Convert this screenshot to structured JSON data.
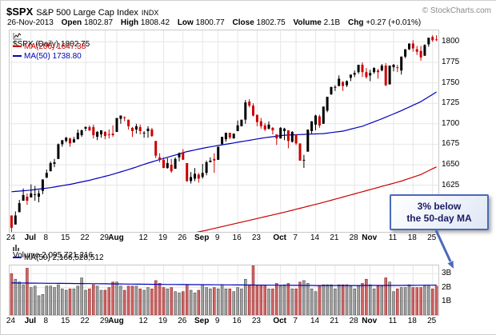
{
  "header": {
    "symbol": "$SPX",
    "name": "S&P 500 Large Cap Index",
    "exchange": "INDX",
    "copyright": "© StockCharts.com",
    "date": "26-Nov-2013",
    "quote": [
      {
        "label": "Open",
        "value": "1802.87"
      },
      {
        "label": "High",
        "value": "1808.42"
      },
      {
        "label": "Low",
        "value": "1800.77"
      },
      {
        "label": "Close",
        "value": "1802.75"
      },
      {
        "label": "Volume",
        "value": "2.1B"
      },
      {
        "label": "Chg",
        "value": "+0.27 (+0.01%)"
      }
    ]
  },
  "price_pane": {
    "legend_symbol": "$SPX (Daily) 1802.75",
    "legend_ma200": "MA(200) 1647.38",
    "legend_ma50": "MA(50) 1738.80"
  },
  "volume_pane": {
    "legend_volume": "Volume 2,095,721,216",
    "legend_ma50": "MA(50) 2,166,528,512"
  },
  "annotation": {
    "text_line1": "3% below",
    "text_line2": "the 50-day MA"
  },
  "colors": {
    "up": "#000000",
    "down": "#cc0000",
    "ma50": "#0000bb",
    "ma200": "#cc0000",
    "grid": "#e6e6e6",
    "volume_up": "#8a8a8a",
    "volume_down": "#c04040",
    "annotation_blue": "#4a6ab8",
    "copyright_gray": "#8a8a8a"
  },
  "chart_data": {
    "type": "candlestick",
    "title": "$SPX S&P 500 Large Cap Index (Daily) with MA(50), MA(200) and Volume",
    "price_axis": {
      "min": 1568,
      "max": 1814,
      "ticks": [
        1800,
        1775,
        1750,
        1725,
        1700,
        1675,
        1650,
        1625
      ]
    },
    "volume_axis": {
      "min": 0,
      "max": 3.6,
      "unit": "billions",
      "ticks": [
        {
          "v": 3,
          "label": "3B"
        },
        {
          "v": 2,
          "label": "2B"
        },
        {
          "v": 1,
          "label": "1B"
        }
      ]
    },
    "x_ticks": [
      {
        "label": "24",
        "index": 0,
        "month": false
      },
      {
        "label": "Jul",
        "index": 5,
        "month": true
      },
      {
        "label": "8",
        "index": 9,
        "month": false
      },
      {
        "label": "15",
        "index": 14,
        "month": false
      },
      {
        "label": "22",
        "index": 19,
        "month": false
      },
      {
        "label": "29",
        "index": 24,
        "month": false
      },
      {
        "label": "Aug",
        "index": 27,
        "month": true
      },
      {
        "label": "12",
        "index": 34,
        "month": false
      },
      {
        "label": "19",
        "index": 39,
        "month": false
      },
      {
        "label": "26",
        "index": 44,
        "month": false
      },
      {
        "label": "Sep",
        "index": 49,
        "month": true
      },
      {
        "label": "9",
        "index": 53,
        "month": false
      },
      {
        "label": "16",
        "index": 58,
        "month": false
      },
      {
        "label": "23",
        "index": 63,
        "month": false
      },
      {
        "label": "Oct",
        "index": 69,
        "month": true
      },
      {
        "label": "7",
        "index": 73,
        "month": false
      },
      {
        "label": "14",
        "index": 78,
        "month": false
      },
      {
        "label": "21",
        "index": 83,
        "month": false
      },
      {
        "label": "28",
        "index": 88,
        "month": false
      },
      {
        "label": "Nov",
        "index": 92,
        "month": true
      },
      {
        "label": "11",
        "index": 98,
        "month": false
      },
      {
        "label": "18",
        "index": 103,
        "month": false
      },
      {
        "label": "25",
        "index": 108,
        "month": false
      }
    ],
    "candles": [
      [
        "6/24",
        1588,
        1588,
        1560,
        1573,
        3.0
      ],
      [
        "6/25",
        1577,
        1593,
        1577,
        1588,
        2.6
      ],
      [
        "6/26",
        1592,
        1607,
        1592,
        1603,
        2.4
      ],
      [
        "6/27",
        1606,
        1621,
        1606,
        1613,
        2.2
      ],
      [
        "6/28",
        1611,
        1615,
        1601,
        1606,
        3.4
      ],
      [
        "7/1",
        1610,
        1626,
        1610,
        1615,
        2.0
      ],
      [
        "7/2",
        1614,
        1624,
        1606,
        1614,
        2.1
      ],
      [
        "7/3",
        1611,
        1619,
        1604,
        1615,
        1.4
      ],
      [
        "7/5",
        1618,
        1632,
        1614,
        1632,
        1.5
      ],
      [
        "7/8",
        1634,
        1644,
        1634,
        1640,
        2.1
      ],
      [
        "7/9",
        1642,
        1654,
        1642,
        1652,
        2.1
      ],
      [
        "7/10",
        1651,
        1657,
        1647,
        1653,
        2.0
      ],
      [
        "7/11",
        1657,
        1676,
        1657,
        1675,
        2.2
      ],
      [
        "7/12",
        1675,
        1680,
        1672,
        1680,
        1.9
      ],
      [
        "7/15",
        1679,
        1684,
        1677,
        1683,
        1.8
      ],
      [
        "7/16",
        1682,
        1683,
        1672,
        1676,
        1.9
      ],
      [
        "7/17",
        1677,
        1684,
        1677,
        1681,
        1.9
      ],
      [
        "7/18",
        1681,
        1693,
        1681,
        1689,
        2.1
      ],
      [
        "7/19",
        1686,
        1693,
        1684,
        1692,
        2.7
      ],
      [
        "7/22",
        1694,
        1697,
        1691,
        1696,
        1.8
      ],
      [
        "7/23",
        1696,
        1698,
        1691,
        1692,
        1.9
      ],
      [
        "7/24",
        1696,
        1699,
        1682,
        1686,
        2.2
      ],
      [
        "7/25",
        1684,
        1691,
        1680,
        1690,
        2.1
      ],
      [
        "7/26",
        1687,
        1692,
        1683,
        1692,
        1.8
      ],
      [
        "7/29",
        1690,
        1691,
        1681,
        1685,
        1.8
      ],
      [
        "7/30",
        1687,
        1693,
        1682,
        1686,
        2.0
      ],
      [
        "7/31",
        1688,
        1698,
        1684,
        1686,
        2.4
      ],
      [
        "8/1",
        1690,
        1707,
        1690,
        1707,
        2.4
      ],
      [
        "8/2",
        1706,
        1710,
        1700,
        1710,
        2.1
      ],
      [
        "8/5",
        1708,
        1709,
        1703,
        1707,
        1.8
      ],
      [
        "8/6",
        1705,
        1705,
        1693,
        1697,
        2.1
      ],
      [
        "8/7",
        1695,
        1696,
        1684,
        1691,
        2.1
      ],
      [
        "8/8",
        1693,
        1700,
        1688,
        1697,
        2.1
      ],
      [
        "8/9",
        1696,
        1699,
        1687,
        1691,
        1.9
      ],
      [
        "8/12",
        1688,
        1691,
        1683,
        1689,
        1.8
      ],
      [
        "8/13",
        1691,
        1697,
        1683,
        1694,
        2.0
      ],
      [
        "8/14",
        1693,
        1695,
        1684,
        1685,
        1.9
      ],
      [
        "8/15",
        1679,
        1679,
        1658,
        1661,
        2.5
      ],
      [
        "8/16",
        1659,
        1664,
        1653,
        1656,
        2.3
      ],
      [
        "8/19",
        1656,
        1659,
        1646,
        1646,
        2.0
      ],
      [
        "8/20",
        1646,
        1658,
        1645,
        1652,
        1.9
      ],
      [
        "8/21",
        1650,
        1657,
        1640,
        1642,
        2.0
      ],
      [
        "8/22",
        1645,
        1659,
        1645,
        1657,
        1.7
      ],
      [
        "8/23",
        1659,
        1665,
        1654,
        1664,
        1.6
      ],
      [
        "8/26",
        1665,
        1669,
        1656,
        1656,
        1.7
      ],
      [
        "8/27",
        1652,
        1652,
        1629,
        1630,
        2.2
      ],
      [
        "8/28",
        1630,
        1641,
        1627,
        1635,
        1.8
      ],
      [
        "8/29",
        1633,
        1646,
        1630,
        1639,
        1.6
      ],
      [
        "8/30",
        1638,
        1640,
        1628,
        1633,
        1.8
      ],
      [
        "9/3",
        1635,
        1651,
        1633,
        1640,
        2.2
      ],
      [
        "9/4",
        1640,
        1655,
        1637,
        1653,
        2.0
      ],
      [
        "9/5",
        1653,
        1659,
        1653,
        1655,
        1.9
      ],
      [
        "9/6",
        1657,
        1664,
        1640,
        1655,
        2.0
      ],
      [
        "9/9",
        1656,
        1672,
        1656,
        1672,
        1.9
      ],
      [
        "9/10",
        1675,
        1684,
        1675,
        1684,
        2.2
      ],
      [
        "9/11",
        1681,
        1689,
        1678,
        1689,
        1.9
      ],
      [
        "9/12",
        1689,
        1689,
        1681,
        1683,
        1.9
      ],
      [
        "9/13",
        1682,
        1688,
        1682,
        1688,
        1.7
      ],
      [
        "9/16",
        1691,
        1704,
        1691,
        1698,
        2.0
      ],
      [
        "9/17",
        1697,
        1705,
        1697,
        1705,
        1.9
      ],
      [
        "9/18",
        1705,
        1729,
        1700,
        1726,
        2.6
      ],
      [
        "9/19",
        1727,
        1730,
        1720,
        1722,
        2.2
      ],
      [
        "9/20",
        1722,
        1725,
        1709,
        1710,
        3.6
      ],
      [
        "9/23",
        1711,
        1711,
        1697,
        1702,
        2.1
      ],
      [
        "9/24",
        1703,
        1707,
        1694,
        1697,
        2.1
      ],
      [
        "9/25",
        1698,
        1701,
        1691,
        1693,
        2.1
      ],
      [
        "9/26",
        1694,
        1703,
        1693,
        1699,
        1.9
      ],
      [
        "9/27",
        1695,
        1696,
        1687,
        1692,
        1.9
      ],
      [
        "9/30",
        1687,
        1687,
        1674,
        1682,
        2.3
      ],
      [
        "10/1",
        1682,
        1696,
        1682,
        1695,
        2.1
      ],
      [
        "10/2",
        1691,
        1695,
        1680,
        1694,
        2.2
      ],
      [
        "10/3",
        1692,
        1692,
        1670,
        1679,
        2.3
      ],
      [
        "10/4",
        1678,
        1691,
        1677,
        1690,
        1.9
      ],
      [
        "10/7",
        1687,
        1687,
        1674,
        1676,
        1.9
      ],
      [
        "10/8",
        1676,
        1676,
        1655,
        1655,
        2.4
      ],
      [
        "10/9",
        1656,
        1662,
        1646,
        1656,
        2.5
      ],
      [
        "10/10",
        1666,
        1693,
        1666,
        1693,
        2.3
      ],
      [
        "10/11",
        1691,
        1703,
        1688,
        1703,
        1.9
      ],
      [
        "10/14",
        1699,
        1711,
        1692,
        1710,
        1.7
      ],
      [
        "10/15",
        1709,
        1711,
        1695,
        1698,
        2.1
      ],
      [
        "10/16",
        1700,
        1721,
        1700,
        1721,
        2.2
      ],
      [
        "10/17",
        1716,
        1733,
        1714,
        1733,
        2.2
      ],
      [
        "10/18",
        1736,
        1745,
        1735,
        1745,
        2.2
      ],
      [
        "10/21",
        1745,
        1747,
        1740,
        1745,
        1.9
      ],
      [
        "10/22",
        1746,
        1759,
        1746,
        1755,
        2.2
      ],
      [
        "10/23",
        1751,
        1752,
        1740,
        1746,
        2.2
      ],
      [
        "10/24",
        1747,
        1753,
        1745,
        1752,
        2.2
      ],
      [
        "10/25",
        1756,
        1760,
        1752,
        1760,
        2.1
      ],
      [
        "10/28",
        1760,
        1765,
        1757,
        1762,
        1.9
      ],
      [
        "10/29",
        1763,
        1772,
        1761,
        1772,
        2.1
      ],
      [
        "10/30",
        1772,
        1775,
        1757,
        1763,
        2.3
      ],
      [
        "10/31",
        1763,
        1768,
        1755,
        1757,
        2.6
      ],
      [
        "11/1",
        1759,
        1766,
        1752,
        1762,
        2.2
      ],
      [
        "11/4",
        1763,
        1769,
        1761,
        1768,
        1.9
      ],
      [
        "11/5",
        1765,
        1767,
        1755,
        1763,
        2.1
      ],
      [
        "11/6",
        1765,
        1773,
        1764,
        1771,
        2.1
      ],
      [
        "11/7",
        1771,
        1774,
        1746,
        1747,
        2.7
      ],
      [
        "11/8",
        1748,
        1771,
        1748,
        1771,
        2.4
      ],
      [
        "11/11",
        1769,
        1773,
        1764,
        1772,
        1.7
      ],
      [
        "11/12",
        1769,
        1772,
        1763,
        1768,
        1.9
      ],
      [
        "11/13",
        1765,
        1782,
        1760,
        1782,
        2.0
      ],
      [
        "11/14",
        1782,
        1791,
        1780,
        1791,
        2.0
      ],
      [
        "11/15",
        1791,
        1798,
        1790,
        1798,
        2.2
      ],
      [
        "11/18",
        1798,
        1802,
        1788,
        1792,
        2.0
      ],
      [
        "11/19",
        1791,
        1795,
        1784,
        1788,
        2.0
      ],
      [
        "11/20",
        1789,
        1795,
        1777,
        1781,
        2.0
      ],
      [
        "11/21",
        1783,
        1797,
        1783,
        1796,
        2.1
      ],
      [
        "11/22",
        1797,
        1805,
        1794,
        1805,
        2.1
      ],
      [
        "11/25",
        1806,
        1808,
        1800,
        1802,
        1.9
      ],
      [
        "11/26",
        1803,
        1808,
        1801,
        1802.75,
        2.1
      ]
    ],
    "ma50_points": [
      [
        0,
        1617
      ],
      [
        5,
        1619
      ],
      [
        10,
        1622
      ],
      [
        15,
        1626
      ],
      [
        20,
        1631
      ],
      [
        25,
        1637
      ],
      [
        30,
        1644
      ],
      [
        35,
        1652
      ],
      [
        40,
        1659
      ],
      [
        45,
        1666
      ],
      [
        50,
        1671
      ],
      [
        55,
        1675
      ],
      [
        60,
        1679
      ],
      [
        65,
        1683
      ],
      [
        70,
        1686
      ],
      [
        75,
        1687
      ],
      [
        80,
        1688
      ],
      [
        85,
        1691
      ],
      [
        90,
        1697
      ],
      [
        95,
        1706
      ],
      [
        100,
        1716
      ],
      [
        105,
        1727
      ],
      [
        109,
        1738.8
      ]
    ],
    "ma200_points": [
      [
        0,
        1524
      ],
      [
        10,
        1533
      ],
      [
        20,
        1542
      ],
      [
        30,
        1551
      ],
      [
        40,
        1560
      ],
      [
        50,
        1570
      ],
      [
        60,
        1581
      ],
      [
        70,
        1592
      ],
      [
        80,
        1604
      ],
      [
        90,
        1617
      ],
      [
        100,
        1630
      ],
      [
        105,
        1638
      ],
      [
        109,
        1647.4
      ]
    ],
    "volume_ma50_points": [
      [
        0,
        2.33
      ],
      [
        20,
        2.28
      ],
      [
        40,
        2.22
      ],
      [
        60,
        2.18
      ],
      [
        80,
        2.14
      ],
      [
        100,
        2.15
      ],
      [
        109,
        2.17
      ]
    ],
    "last_values": {
      "close": 1802.75,
      "ma50": 1738.8,
      "ma200": 1647.38,
      "volume": 2095721216,
      "volume_ma50": 2166528512
    }
  }
}
